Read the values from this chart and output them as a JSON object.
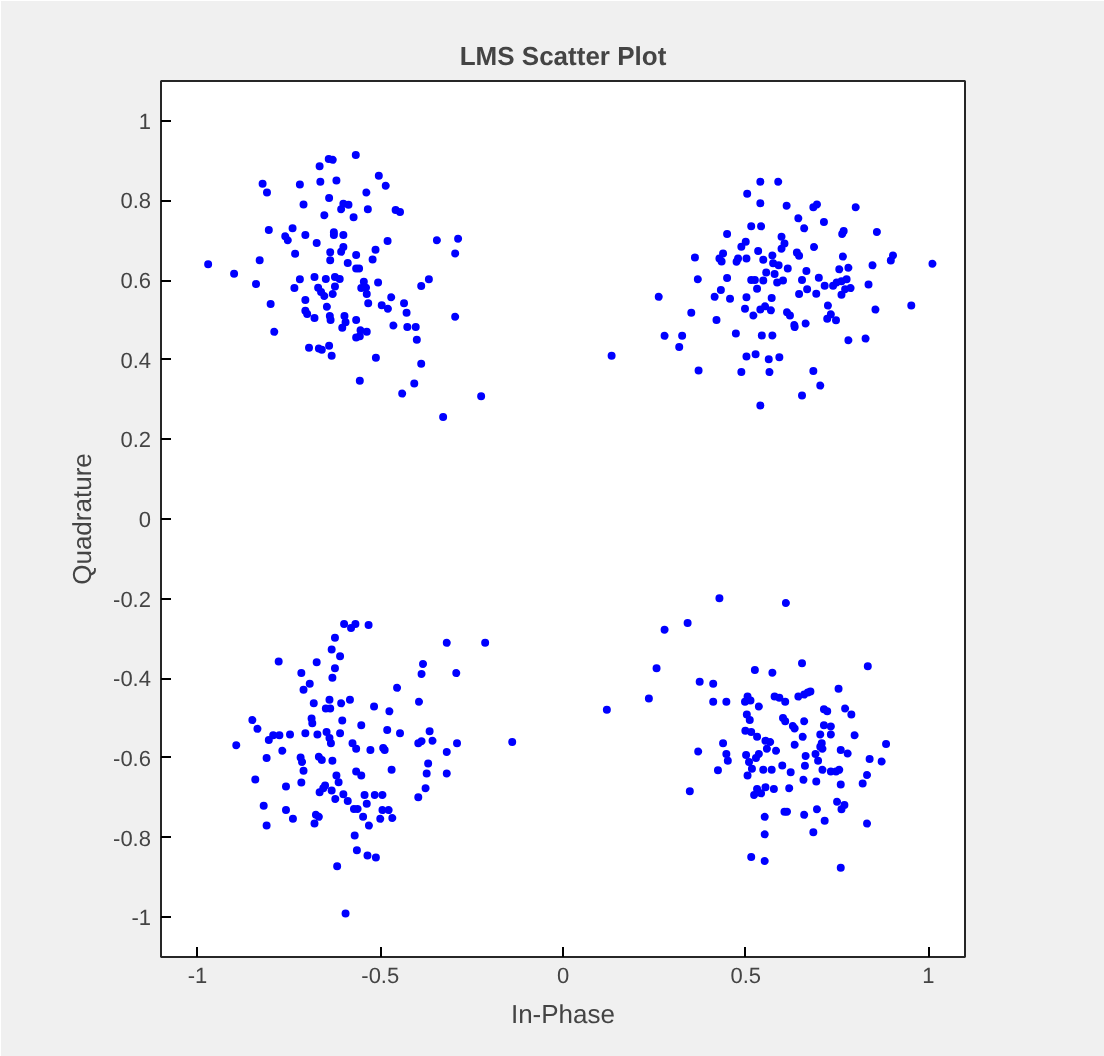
{
  "chart_data": {
    "type": "scatter",
    "title": "LMS Scatter Plot",
    "xlabel": "In-Phase",
    "ylabel": "Quadrature",
    "color": "#0000ff",
    "marker": "circle",
    "grid": false,
    "xlim": [
      -1.1,
      1.1
    ],
    "ylim": [
      -1.1,
      1.1
    ],
    "xticks": [
      -1,
      -0.5,
      0,
      0.5,
      1
    ],
    "yticks": [
      -1,
      -0.8,
      -0.6,
      -0.4,
      -0.2,
      0,
      0.2,
      0.4,
      0.6,
      0.8,
      1
    ],
    "x": [
      -0.971,
      -0.9,
      -0.822,
      -0.81,
      -0.83,
      -0.84,
      -0.8,
      -0.79,
      -0.805,
      -0.76,
      -0.753,
      -0.74,
      -0.733,
      -0.72,
      -0.71,
      -0.705,
      -0.72,
      -0.735,
      -0.705,
      -0.705,
      -0.7,
      -0.68,
      -0.695,
      -0.668,
      -0.66,
      -0.64,
      -0.633,
      -0.674,
      -0.664,
      -0.666,
      -0.641,
      -0.63,
      -0.567,
      -0.62,
      -0.64,
      -0.653,
      -0.607,
      -0.601,
      -0.587,
      -0.573,
      -0.627,
      -0.627,
      -0.601,
      -0.637,
      -0.637,
      -0.607,
      -0.601,
      -0.566,
      -0.558,
      -0.566,
      -0.589,
      -0.68,
      -0.649,
      -0.624,
      -0.611,
      -0.624,
      -0.67,
      -0.662,
      -0.653,
      -0.63,
      -0.646,
      -0.638,
      -0.636,
      -0.598,
      -0.595,
      -0.604,
      -0.566,
      -0.554,
      -0.537,
      -0.566,
      -0.556,
      -0.545,
      -0.539,
      -0.552,
      -0.506,
      -0.537,
      -0.533,
      -0.521,
      -0.513,
      -0.48,
      -0.538,
      -0.534,
      -0.504,
      -0.485,
      -0.458,
      -0.446,
      -0.512,
      -0.556,
      -0.496,
      -0.479,
      -0.47,
      -0.435,
      -0.428,
      -0.464,
      -0.426,
      -0.403,
      -0.4,
      -0.388,
      -0.367,
      -0.388,
      -0.44,
      -0.407,
      -0.328,
      -0.224,
      -0.345,
      -0.287,
      -0.295,
      -0.295,
      0.133,
      0.262,
      0.278,
      0.326,
      0.318,
      0.351,
      0.361,
      0.369,
      0.371,
      0.42,
      0.415,
      0.432,
      0.457,
      0.428,
      0.434,
      0.438,
      0.449,
      0.449,
      0.475,
      0.479,
      0.502,
      0.488,
      0.5,
      0.504,
      0.54,
      0.589,
      0.54,
      0.515,
      0.542,
      0.612,
      0.502,
      0.498,
      0.521,
      0.473,
      0.502,
      0.527,
      0.488,
      0.544,
      0.573,
      0.563,
      0.592,
      0.565,
      0.54,
      0.534,
      0.548,
      0.573,
      0.575,
      0.59,
      0.525,
      0.531,
      0.515,
      0.548,
      0.556,
      0.579,
      0.571,
      0.54,
      0.553,
      0.569,
      0.586,
      0.602,
      0.615,
      0.598,
      0.606,
      0.598,
      0.613,
      0.621,
      0.634,
      0.644,
      0.66,
      0.685,
      0.695,
      0.714,
      0.64,
      0.646,
      0.687,
      0.666,
      0.654,
      0.668,
      0.646,
      0.664,
      0.633,
      0.7,
      0.693,
      0.716,
      0.725,
      0.733,
      0.723,
      0.747,
      0.685,
      0.704,
      0.654,
      0.764,
      0.768,
      0.801,
      0.766,
      0.739,
      0.749,
      0.762,
      0.776,
      0.781,
      0.756,
      0.772,
      0.762,
      0.787,
      0.781,
      0.828,
      0.836,
      0.847,
      0.859,
      0.855,
      0.897,
      0.903,
      0.953,
      1.011,
      -0.894,
      -0.85,
      -0.836,
      -0.842,
      -0.819,
      -0.811,
      -0.811,
      -0.805,
      -0.793,
      -0.776,
      -0.747,
      -0.778,
      -0.768,
      -0.758,
      -0.758,
      -0.739,
      -0.716,
      -0.693,
      -0.71,
      -0.674,
      -0.716,
      -0.71,
      -0.714,
      -0.718,
      -0.705,
      -0.682,
      -0.688,
      -0.686,
      -0.676,
      -0.668,
      -0.68,
      -0.672,
      -0.668,
      -0.66,
      -0.666,
      -0.656,
      -0.651,
      -0.649,
      -0.637,
      -0.639,
      -0.647,
      -0.639,
      -0.635,
      -0.633,
      -0.623,
      -0.631,
      -0.62,
      -0.614,
      -0.631,
      -0.624,
      -0.633,
      -0.624,
      -0.61,
      -0.599,
      -0.58,
      -0.568,
      -0.532,
      -0.61,
      -0.604,
      -0.607,
      -0.583,
      -0.618,
      -0.595,
      -0.601,
      -0.589,
      -0.572,
      -0.562,
      -0.576,
      -0.566,
      -0.566,
      -0.552,
      -0.552,
      -0.57,
      -0.564,
      -0.535,
      -0.512,
      -0.543,
      -0.537,
      -0.547,
      -0.531,
      -0.527,
      -0.517,
      -0.5,
      -0.494,
      -0.477,
      -0.467,
      -0.515,
      -0.494,
      -0.492,
      -0.488,
      -0.481,
      -0.475,
      -0.469,
      -0.454,
      -0.446,
      -0.394,
      -0.396,
      -0.387,
      -0.365,
      -0.357,
      -0.387,
      -0.383,
      -0.369,
      -0.373,
      -0.376,
      -0.396,
      -0.318,
      -0.292,
      -0.318,
      -0.318,
      -0.29,
      -0.213,
      -0.139,
      0.12,
      0.235,
      0.256,
      0.278,
      0.341,
      0.428,
      0.61,
      0.347,
      0.37,
      0.374,
      0.411,
      0.411,
      0.447,
      0.438,
      0.447,
      0.451,
      0.424,
      0.498,
      0.505,
      0.513,
      0.503,
      0.511,
      0.499,
      0.515,
      0.501,
      0.509,
      0.517,
      0.505,
      0.525,
      0.573,
      0.536,
      0.531,
      0.554,
      0.567,
      0.528,
      0.536,
      0.523,
      0.531,
      0.542,
      0.554,
      0.548,
      0.571,
      0.577,
      0.552,
      0.552,
      0.515,
      0.552,
      0.558,
      0.583,
      0.579,
      0.592,
      0.608,
      0.602,
      0.608,
      0.629,
      0.634,
      0.6,
      0.623,
      0.619,
      0.606,
      0.613,
      0.654,
      0.644,
      0.66,
      0.67,
      0.677,
      0.66,
      0.656,
      0.664,
      0.662,
      0.658,
      0.634,
      0.685,
      0.66,
      0.695,
      0.716,
      0.691,
      0.698,
      0.704,
      0.71,
      0.708,
      0.704,
      0.714,
      0.714,
      0.723,
      0.733,
      0.733,
      0.693,
      0.71,
      0.733,
      0.747,
      0.756,
      0.754,
      0.75,
      0.77,
      0.762,
      0.76,
      0.779,
      0.798,
      0.772,
      0.789,
      0.76,
      0.82,
      0.832,
      0.834,
      0.839,
      0.872,
      0.884,
      0.832,
      0.76
    ],
    "values": [
      0.64,
      0.616,
      0.842,
      0.82,
      0.65,
      0.59,
      0.54,
      0.47,
      0.726,
      0.71,
      0.7,
      0.73,
      0.666,
      0.84,
      0.79,
      0.713,
      0.602,
      0.58,
      0.55,
      0.523,
      0.515,
      0.505,
      0.43,
      0.428,
      0.425,
      0.435,
      0.41,
      0.693,
      0.847,
      0.886,
      0.904,
      0.902,
      0.914,
      0.85,
      0.806,
      0.763,
      0.778,
      0.792,
      0.789,
      0.758,
      0.72,
      0.713,
      0.713,
      0.67,
      0.65,
      0.671,
      0.683,
      0.663,
      0.629,
      0.629,
      0.643,
      0.608,
      0.603,
      0.608,
      0.603,
      0.584,
      0.581,
      0.57,
      0.56,
      0.565,
      0.533,
      0.51,
      0.5,
      0.51,
      0.494,
      0.48,
      0.5,
      0.474,
      0.47,
      0.456,
      0.459,
      0.596,
      0.581,
      0.58,
      0.594,
      0.565,
      0.542,
      0.652,
      0.676,
      0.698,
      0.82,
      0.778,
      0.862,
      0.837,
      0.776,
      0.771,
      0.405,
      0.347,
      0.537,
      0.528,
      0.557,
      0.542,
      0.518,
      0.486,
      0.482,
      0.482,
      0.45,
      0.585,
      0.602,
      0.39,
      0.315,
      0.34,
      0.256,
      0.308,
      0.7,
      0.704,
      0.667,
      0.508,
      0.41,
      0.558,
      0.46,
      0.46,
      0.432,
      0.518,
      0.657,
      0.602,
      0.373,
      0.5,
      0.558,
      0.575,
      0.553,
      0.654,
      0.647,
      0.667,
      0.716,
      0.605,
      0.646,
      0.654,
      0.654,
      0.684,
      0.696,
      0.817,
      0.847,
      0.847,
      0.793,
      0.735,
      0.735,
      0.787,
      0.557,
      0.528,
      0.511,
      0.466,
      0.408,
      0.414,
      0.369,
      0.461,
      0.461,
      0.401,
      0.406,
      0.369,
      0.285,
      0.673,
      0.651,
      0.662,
      0.642,
      0.637,
      0.6,
      0.578,
      0.6,
      0.599,
      0.619,
      0.615,
      0.555,
      0.526,
      0.534,
      0.524,
      0.594,
      0.599,
      0.629,
      0.709,
      0.692,
      0.679,
      0.519,
      0.511,
      0.482,
      0.755,
      0.73,
      0.783,
      0.79,
      0.746,
      0.669,
      0.661,
      0.683,
      0.623,
      0.6,
      0.577,
      0.565,
      0.491,
      0.487,
      0.606,
      0.566,
      0.586,
      0.536,
      0.514,
      0.503,
      0.499,
      0.372,
      0.335,
      0.31,
      0.716,
      0.723,
      0.783,
      0.659,
      0.586,
      0.594,
      0.597,
      0.602,
      0.631,
      0.627,
      0.577,
      0.563,
      0.58,
      0.449,
      0.453,
      0.589,
      0.637,
      0.721,
      0.526,
      0.649,
      0.662,
      0.536,
      0.641,
      -0.568,
      -0.505,
      -0.527,
      -0.654,
      -0.72,
      -0.77,
      -0.6,
      -0.555,
      -0.543,
      -0.543,
      -0.541,
      -0.358,
      -0.582,
      -0.672,
      -0.731,
      -0.753,
      -0.387,
      -0.414,
      -0.429,
      -0.36,
      -0.662,
      -0.632,
      -0.61,
      -0.599,
      -0.538,
      -0.463,
      -0.501,
      -0.513,
      -0.743,
      -0.748,
      -0.765,
      -0.541,
      -0.597,
      -0.605,
      -0.686,
      -0.676,
      -0.669,
      -0.476,
      -0.476,
      -0.454,
      -0.535,
      -0.55,
      -0.563,
      -0.682,
      -0.703,
      -0.607,
      -0.644,
      -0.661,
      -0.399,
      -0.375,
      -0.328,
      -0.298,
      -0.345,
      -0.264,
      -0.274,
      -0.264,
      -0.266,
      -0.538,
      -0.506,
      -0.463,
      -0.454,
      -0.872,
      -0.991,
      -0.691,
      -0.708,
      -0.728,
      -0.728,
      -0.563,
      -0.577,
      -0.634,
      -0.644,
      -0.518,
      -0.795,
      -0.832,
      -0.845,
      -0.85,
      -0.693,
      -0.715,
      -0.748,
      -0.77,
      -0.58,
      -0.471,
      -0.753,
      -0.731,
      -0.731,
      -0.751,
      -0.693,
      -0.693,
      -0.575,
      -0.58,
      -0.53,
      -0.483,
      -0.63,
      -0.424,
      -0.538,
      -0.459,
      -0.563,
      -0.558,
      -0.533,
      -0.557,
      -0.389,
      -0.364,
      -0.614,
      -0.639,
      -0.676,
      -0.699,
      -0.311,
      -0.387,
      -0.585,
      -0.639,
      -0.563,
      -0.311,
      -0.56,
      -0.479,
      -0.451,
      -0.375,
      -0.278,
      -0.261,
      -0.199,
      -0.211,
      -0.684,
      -0.584,
      -0.409,
      -0.414,
      -0.459,
      -0.459,
      -0.563,
      -0.59,
      -0.607,
      -0.631,
      -0.459,
      -0.446,
      -0.456,
      -0.491,
      -0.505,
      -0.532,
      -0.535,
      -0.593,
      -0.61,
      -0.627,
      -0.644,
      -0.379,
      -0.386,
      -0.471,
      -0.547,
      -0.557,
      -0.56,
      -0.6,
      -0.59,
      -0.693,
      -0.678,
      -0.689,
      -0.674,
      -0.63,
      -0.63,
      -0.678,
      -0.748,
      -0.792,
      -0.849,
      -0.859,
      -0.577,
      -0.582,
      -0.446,
      -0.449,
      -0.459,
      -0.5,
      -0.508,
      -0.52,
      -0.526,
      -0.619,
      -0.636,
      -0.676,
      -0.735,
      -0.735,
      -0.362,
      -0.446,
      -0.441,
      -0.436,
      -0.433,
      -0.508,
      -0.547,
      -0.595,
      -0.62,
      -0.655,
      -0.567,
      -0.787,
      -0.743,
      -0.729,
      -0.758,
      -0.59,
      -0.607,
      -0.572,
      -0.577,
      -0.563,
      -0.541,
      -0.518,
      -0.478,
      -0.483,
      -0.521,
      -0.541,
      -0.659,
      -0.63,
      -0.634,
      -0.634,
      -0.63,
      -0.426,
      -0.71,
      -0.718,
      -0.729,
      -0.58,
      -0.589,
      -0.543,
      -0.476,
      -0.491,
      -0.667,
      -0.664,
      -0.643,
      -0.37,
      -0.603,
      -0.609,
      -0.565,
      -0.765,
      -0.876
    ]
  }
}
